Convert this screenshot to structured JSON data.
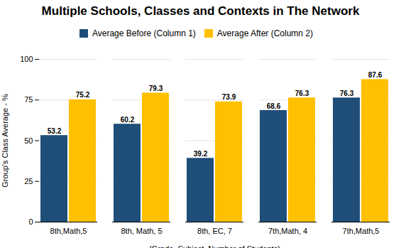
{
  "chart_data": {
    "type": "bar",
    "title": "Multiple Schools, Classes and Contexts in The Network",
    "categories": [
      "8th,Math,5",
      "8th, Math, 5",
      "8th, EC, 7",
      "7th,Math, 4",
      "7th,Math,5"
    ],
    "series": [
      {
        "name": "Average Before (Column 1)",
        "color": "#1F4E79",
        "values": [
          53.2,
          60.2,
          39.2,
          68.6,
          76.3
        ]
      },
      {
        "name": "Average After (Column 2)",
        "color": "#FFC000",
        "values": [
          75.2,
          79.3,
          73.9,
          76.3,
          87.6
        ]
      }
    ],
    "xlabel": "(Grade, Subject, Number of Students)",
    "ylabel": "Group's Class Average - %",
    "ylim": [
      0,
      100
    ],
    "yticks": [
      0,
      25,
      50,
      75,
      100
    ],
    "grid": true,
    "data_labels": true,
    "legend": "top"
  }
}
